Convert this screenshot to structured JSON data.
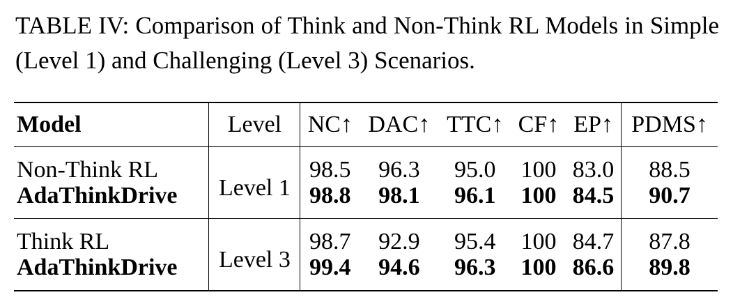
{
  "caption": "TABLE IV: Comparison of Think and Non-Think RL Models in Simple (Level 1) and Challenging (Level 3) Scenarios.",
  "table": {
    "header": [
      "Model",
      "Level",
      "NC↑",
      "DAC↑",
      "TTC↑",
      "CF↑",
      "EP↑",
      "PDMS↑"
    ],
    "groups": [
      {
        "level": "Level 1",
        "rows": [
          {
            "model": "Non-Think RL",
            "values": [
              "98.5",
              "96.3",
              "95.0",
              "100",
              "83.0",
              "88.5"
            ]
          },
          {
            "model": "AdaThinkDrive",
            "values": [
              "98.8",
              "98.1",
              "96.1",
              "100",
              "84.5",
              "90.7"
            ]
          }
        ]
      },
      {
        "level": "Level 3",
        "rows": [
          {
            "model": "Think RL",
            "values": [
              "98.7",
              "92.9",
              "95.4",
              "100",
              "84.7",
              "87.8"
            ]
          },
          {
            "model": "AdaThinkDrive",
            "values": [
              "99.4",
              "94.6",
              "96.3",
              "100",
              "86.6",
              "89.8"
            ]
          }
        ]
      }
    ]
  }
}
